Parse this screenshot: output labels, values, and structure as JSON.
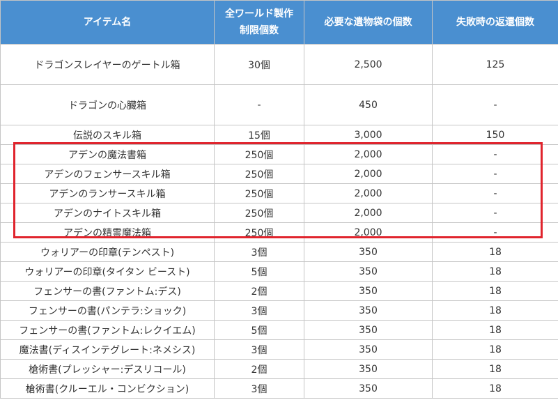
{
  "header": {
    "item_name": "アイテム名",
    "limit_line1": "全ワールド製作",
    "limit_line2": "制限個数",
    "required": "必要な遺物袋の個数",
    "refund": "失敗時の返還個数"
  },
  "rows": [
    {
      "name": "ドラゴンスレイヤーのゲートル箱",
      "limit": "30個",
      "required": "2,500",
      "refund": "125"
    },
    {
      "name": "ドラゴンの心臓箱",
      "limit": "-",
      "required": "450",
      "refund": "-"
    },
    {
      "name": "伝説のスキル箱",
      "limit": "15個",
      "required": "3,000",
      "refund": "150"
    },
    {
      "name": "アデンの魔法書箱",
      "limit": "250個",
      "required": "2,000",
      "refund": "-"
    },
    {
      "name": "アデンのフェンサースキル箱",
      "limit": "250個",
      "required": "2,000",
      "refund": "-"
    },
    {
      "name": "アデンのランサースキル箱",
      "limit": "250個",
      "required": "2,000",
      "refund": "-"
    },
    {
      "name": "アデンのナイトスキル箱",
      "limit": "250個",
      "required": "2,000",
      "refund": "-"
    },
    {
      "name": "アデンの精霊魔法箱",
      "limit": "250個",
      "required": "2,000",
      "refund": "-"
    },
    {
      "name": "ウォリアーの印章(テンペスト)",
      "limit": "3個",
      "required": "350",
      "refund": "18"
    },
    {
      "name": "ウォリアーの印章(タイタン ビースト)",
      "limit": "5個",
      "required": "350",
      "refund": "18"
    },
    {
      "name": "フェンサーの書(ファントム:デス)",
      "limit": "2個",
      "required": "350",
      "refund": "18"
    },
    {
      "name": "フェンサーの書(パンテラ:ショック)",
      "limit": "3個",
      "required": "350",
      "refund": "18"
    },
    {
      "name": "フェンサーの書(ファントム:レクイエム)",
      "limit": "5個",
      "required": "350",
      "refund": "18"
    },
    {
      "name": "魔法書(ディスインテグレート:ネメシス)",
      "limit": "3個",
      "required": "350",
      "refund": "18"
    },
    {
      "name": "槍術書(プレッシャー:デスリコール)",
      "limit": "2個",
      "required": "350",
      "refund": "18"
    },
    {
      "name": "槍術書(クルーエル・コンビクション)",
      "limit": "3個",
      "required": "350",
      "refund": "18"
    }
  ]
}
